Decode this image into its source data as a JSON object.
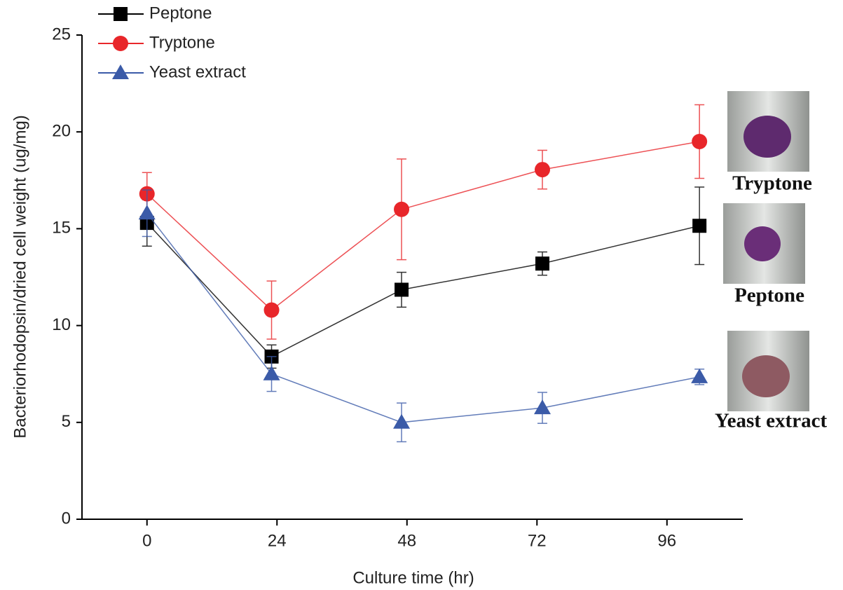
{
  "chart_data": {
    "type": "line",
    "xlabel": "Culture time (hr)",
    "ylabel": "Bacteriorhodopsin/dried cell weight (ug/mg)",
    "xlim": [
      -12,
      110
    ],
    "xticks": [
      0,
      24,
      48,
      72,
      96
    ],
    "ylim": [
      0,
      25
    ],
    "yticks": [
      0,
      5,
      10,
      15,
      20,
      25
    ],
    "series": [
      {
        "name": "Peptone",
        "color": "#000000",
        "marker": "square",
        "x": [
          0,
          23,
          47,
          73,
          102
        ],
        "values": [
          15.3,
          8.4,
          11.85,
          13.2,
          15.15
        ],
        "errors": [
          1.2,
          0.6,
          0.9,
          0.6,
          2.0
        ]
      },
      {
        "name": "Tryptone",
        "color": "#e8262a",
        "marker": "circle",
        "x": [
          0,
          23,
          47,
          73,
          102
        ],
        "values": [
          16.8,
          10.8,
          16.0,
          18.05,
          19.5
        ],
        "errors": [
          1.1,
          1.5,
          2.6,
          1.0,
          1.9
        ]
      },
      {
        "name": "Yeast extract",
        "color": "#3b5ba8",
        "marker": "triangle",
        "x": [
          0,
          23,
          47,
          73,
          102
        ],
        "values": [
          15.8,
          7.5,
          5.0,
          5.75,
          7.35
        ],
        "errors": [
          1.2,
          0.9,
          1.0,
          0.8,
          0.4
        ]
      }
    ],
    "annotations": [
      "Tryptone",
      "Peptone",
      "Yeast extract"
    ]
  }
}
